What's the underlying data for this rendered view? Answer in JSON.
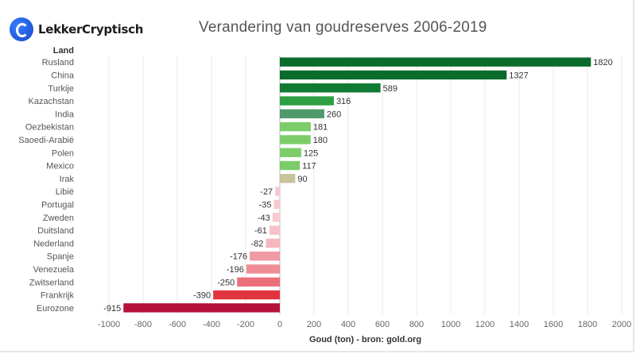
{
  "brand": {
    "name": "LekkerCryptisch",
    "logo_icon": "c-logo-icon",
    "logo_color": "#1e5bf0"
  },
  "chart_data": {
    "type": "bar",
    "orientation": "horizontal",
    "title": "Verandering van goudreserves 2006-2019",
    "category_header": "Land",
    "xlabel": "Goud (ton) - bron: gold.org",
    "xlim": [
      -1000,
      2000
    ],
    "xticks": [
      -1000,
      -800,
      -600,
      -400,
      -200,
      0,
      200,
      400,
      600,
      800,
      1000,
      1200,
      1400,
      1600,
      1800,
      2000
    ],
    "grid": "vertical",
    "categories": [
      "Rusland",
      "China",
      "Turkije",
      "Kazachstan",
      "India",
      "Oezbekistan",
      "Saoedi-Arabië",
      "Polen",
      "Mexico",
      "Irak",
      "Libië",
      "Portugal",
      "Zweden",
      "Duitsland",
      "Nederland",
      "Spanje",
      "Venezuela",
      "Zwitserland",
      "Frankrijk",
      "Eurozone"
    ],
    "values": [
      1820,
      1327,
      589,
      316,
      260,
      181,
      180,
      125,
      117,
      90,
      -27,
      -35,
      -43,
      -61,
      -82,
      -176,
      -196,
      -250,
      -390,
      -915
    ],
    "colors": [
      "#0b6b2b",
      "#0b6b2b",
      "#0f7a32",
      "#2ea043",
      "#4e9a6a",
      "#7ccd6a",
      "#7ccd6a",
      "#7ccd6a",
      "#7ccd6a",
      "#c9c29a",
      "#f7c9cf",
      "#f7c9cf",
      "#f7c9cf",
      "#f6c1c7",
      "#f6b7be",
      "#f09aa3",
      "#ef8d97",
      "#ea6f7b",
      "#e2343f",
      "#b4123a"
    ]
  }
}
